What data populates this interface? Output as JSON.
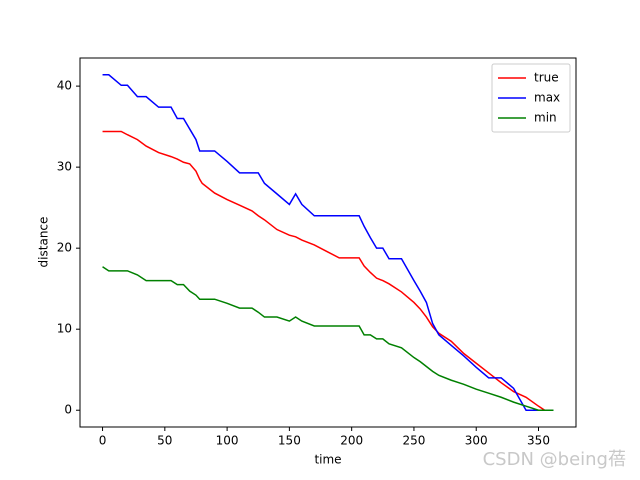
{
  "chart_data": {
    "type": "line",
    "x_label": "time",
    "y_label": "distance",
    "x": [
      0,
      5,
      15,
      20,
      28,
      35,
      45,
      55,
      60,
      65,
      70,
      75,
      78,
      80,
      90,
      100,
      110,
      120,
      125,
      130,
      140,
      150,
      155,
      160,
      170,
      180,
      190,
      200,
      206,
      210,
      215,
      220,
      225,
      230,
      240,
      250,
      255,
      260,
      265,
      270,
      280,
      290,
      300,
      310,
      320,
      330,
      340,
      350,
      355,
      362
    ],
    "series": [
      {
        "name": "true",
        "color": "#ff0000",
        "values": [
          34.4,
          34.4,
          34.4,
          34.0,
          33.4,
          32.6,
          31.8,
          31.3,
          31.0,
          30.6,
          30.4,
          29.5,
          28.5,
          28.0,
          26.8,
          26.0,
          25.3,
          24.6,
          24.0,
          23.5,
          22.3,
          21.6,
          21.4,
          21.0,
          20.4,
          19.6,
          18.8,
          18.8,
          18.8,
          17.8,
          17.0,
          16.3,
          16.0,
          15.6,
          14.6,
          13.3,
          12.5,
          11.5,
          10.3,
          9.5,
          8.5,
          7.0,
          5.8,
          4.6,
          3.4,
          2.3,
          1.6,
          0.5,
          0,
          0
        ]
      },
      {
        "name": "max",
        "color": "#0000ff",
        "values": [
          41.4,
          41.4,
          40.1,
          40.1,
          38.7,
          38.7,
          37.4,
          37.4,
          36.0,
          36.0,
          34.7,
          33.4,
          32.0,
          32.0,
          32.0,
          30.7,
          29.3,
          29.3,
          29.3,
          28.0,
          26.7,
          25.4,
          26.7,
          25.4,
          24.0,
          24.0,
          24.0,
          24.0,
          24.0,
          22.7,
          21.3,
          20.0,
          20.0,
          18.7,
          18.7,
          16.0,
          14.7,
          13.3,
          10.7,
          9.3,
          8.0,
          6.7,
          5.3,
          4.0,
          4.0,
          2.7,
          0,
          0,
          0,
          0
        ]
      },
      {
        "name": "min",
        "color": "#008000",
        "values": [
          17.7,
          17.2,
          17.2,
          17.2,
          16.7,
          16.0,
          16.0,
          16.0,
          15.5,
          15.5,
          14.7,
          14.2,
          13.7,
          13.7,
          13.7,
          13.2,
          12.6,
          12.6,
          12.1,
          11.5,
          11.5,
          11.0,
          11.5,
          11.0,
          10.4,
          10.4,
          10.4,
          10.4,
          10.4,
          9.3,
          9.3,
          8.8,
          8.8,
          8.2,
          7.7,
          6.5,
          6.0,
          5.4,
          4.8,
          4.3,
          3.7,
          3.2,
          2.6,
          2.1,
          1.6,
          1.0,
          0.5,
          0,
          0,
          0
        ]
      }
    ],
    "xlim": [
      -18.1,
      380.1
    ],
    "xticks": [
      0,
      50,
      100,
      150,
      200,
      250,
      300,
      350
    ],
    "ylim": [
      -2.07,
      43.47
    ],
    "yticks": [
      0,
      10,
      20,
      30,
      40
    ],
    "legend": "upper right",
    "grid": false
  },
  "watermark": "CSDN @being蓓"
}
